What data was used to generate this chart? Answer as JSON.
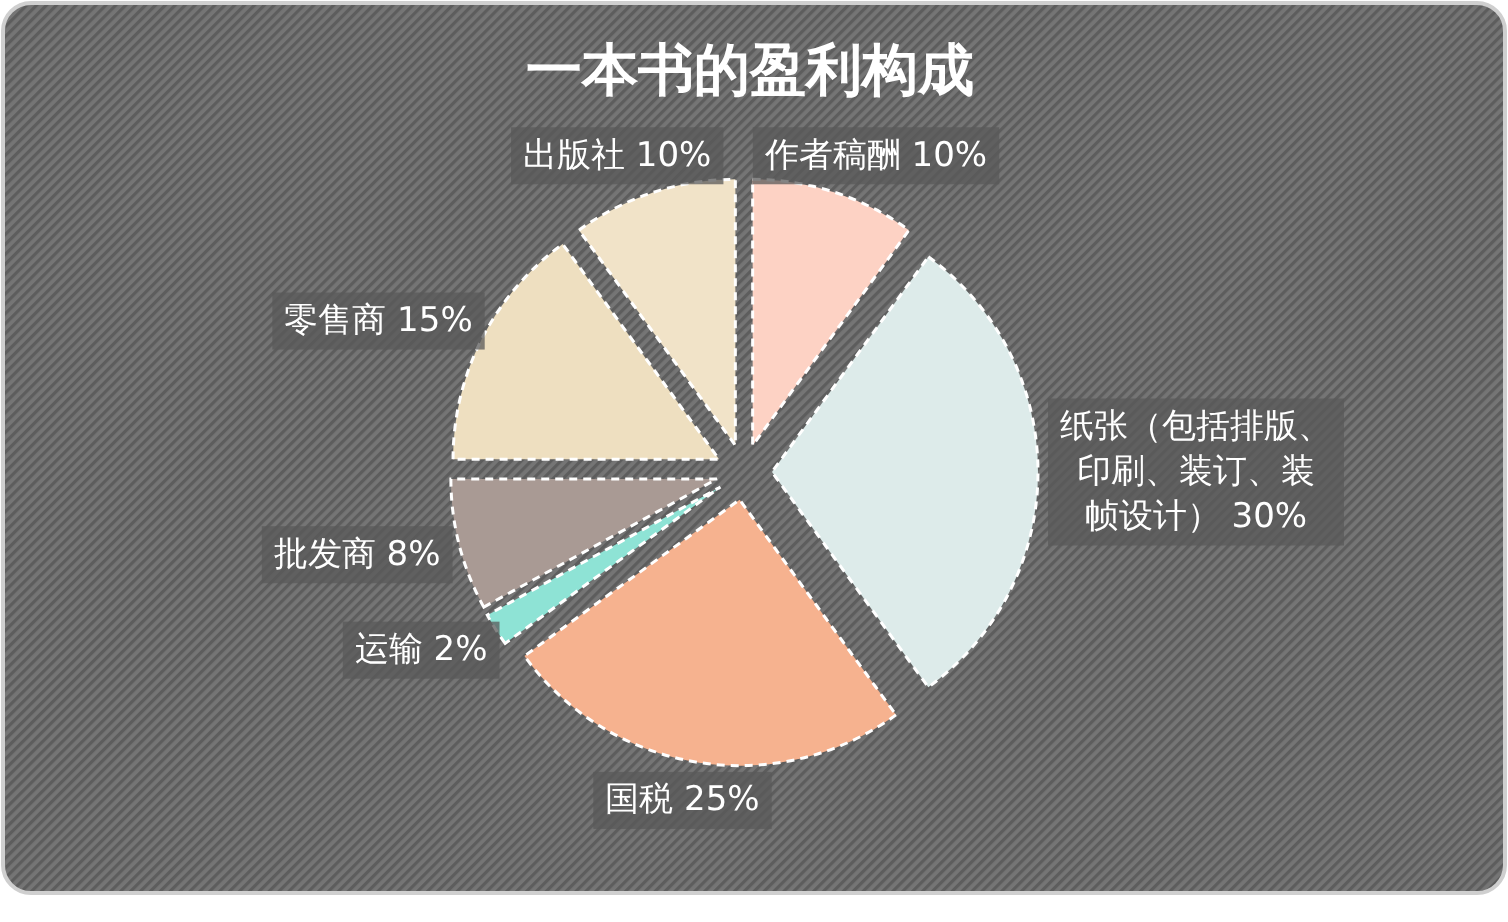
{
  "chart_data": {
    "type": "pie",
    "title": "一本书的盈利构成",
    "categories": [
      "作者稿酬",
      "纸张（包括排版、印刷、装订、装帧设计）",
      "国税",
      "运输",
      "批发商",
      "零售商",
      "出版社"
    ],
    "values": [
      10,
      30,
      25,
      2,
      8,
      15,
      10
    ],
    "value_labels": [
      "10%",
      "30%",
      "25%",
      "2%",
      "8%",
      "15%",
      "10%"
    ],
    "colors": [
      "#fdd2c4",
      "#ddebea",
      "#f6b28f",
      "#8ee3d5",
      "#a99a94",
      "#eedfc0",
      "#f1e3c8"
    ]
  }
}
